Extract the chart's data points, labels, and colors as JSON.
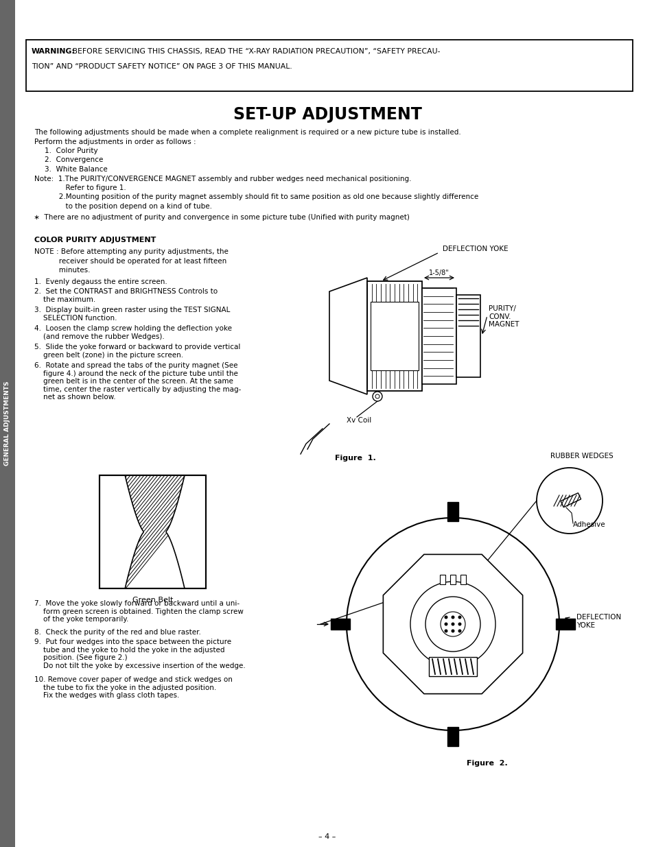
{
  "bg_color": "#ffffff",
  "sidebar_bg": "#666666",
  "sidebar_text": "GENERAL ADJUSTMENTS",
  "sidebar_text_color": "#ffffff",
  "title": "SET-UP ADJUSTMENT",
  "warning_bold": "WARNING:",
  "warning_rest_line1": " BEFORE SERVICING THIS CHASSIS, READ THE “X-RAY RADIATION PRECAUTION”, “SAFETY PRECAU-",
  "warning_line2": "TION” AND “PRODUCT SAFETY NOTICE” ON PAGE 3 OF THIS MANUAL.",
  "body_intro1": "The following adjustments should be made when a complete realignment is required or a new picture tube is installed.",
  "body_intro2": "Perform the adjustments in order as follows :",
  "body_list": [
    "1.  Color Purity",
    "2.  Convergence",
    "3.  White Balance"
  ],
  "body_note1": "Note:  1.The PURITY/CONVERGENCE MAGNET assembly and rubber wedges need mechanical positioning.",
  "body_note1b": "              Refer to figure 1.",
  "body_note2": "           2.Mounting position of the purity magnet assembly should fit to same position as old one because slightly difference",
  "body_note2b": "              to the position depend on a kind of tube.",
  "body_star": " ∗  There are no adjustment of purity and convergence in some picture tube (Unified with purity magnet)",
  "color_purity_heading": "COLOR PURITY ADJUSTMENT",
  "note_line1": "NOTE : Before attempting any purity adjustments, the",
  "note_line2": "           receiver should be operated for at least fifteen",
  "note_line3": "           minutes.",
  "steps_1_6": [
    "1.  Evenly degauss the entire screen.",
    "2.  Set the CONTRAST and BRIGHTNESS Controls to\n    the maximum.",
    "3.  Display built-in green raster using the TEST SIGNAL\n    SELECTION function.",
    "4.  Loosen the clamp screw holding the deflection yoke\n    (and remove the rubber Wedges).",
    "5.  Slide the yoke forward or backward to provide vertical\n    green belt (zone) in the picture screen.",
    "6.  Rotate and spread the tabs of the purity magnet (See\n    figure 4.) around the neck of the picture tube until the\n    green belt is in the center of the screen. At the same\n    time, center the raster vertically by adjusting the mag-\n    net as shown below."
  ],
  "steps_7_10": [
    "7.  Move the yoke slowly forward or backward until a uni-\n    form green screen is obtained. Tighten the clamp screw\n    of the yoke temporarily.",
    "8.  Check the purity of the red and blue raster.",
    "9.  Put four wedges into the space between the picture\n    tube and the yoke to hold the yoke in the adjusted\n    position. (See figure 2.)\n    Do not tilt the yoke by excessive insertion of the wedge.",
    "10. Remove cover paper of wedge and stick wedges on\n    the tube to fix the yoke in the adjusted position.\n    Fix the wedges with glass cloth tapes."
  ],
  "green_belt_caption": "Green Belt",
  "fig1_caption": "Figure  1.",
  "fig2_caption": "Figure  2.",
  "deflection_yoke_label": "DEFLECTION YOKE",
  "one_58": "1-5/8\"",
  "purity_label": "PURITY/\nCONV.\nMAGNET",
  "xv_coil": "Xv Coil",
  "rubber_wedges": "RUBBER WEDGES",
  "adhesive": "Adhesive",
  "defl_yoke2": "DEFLECTION\nYOKE",
  "page_num": "– 4 –"
}
